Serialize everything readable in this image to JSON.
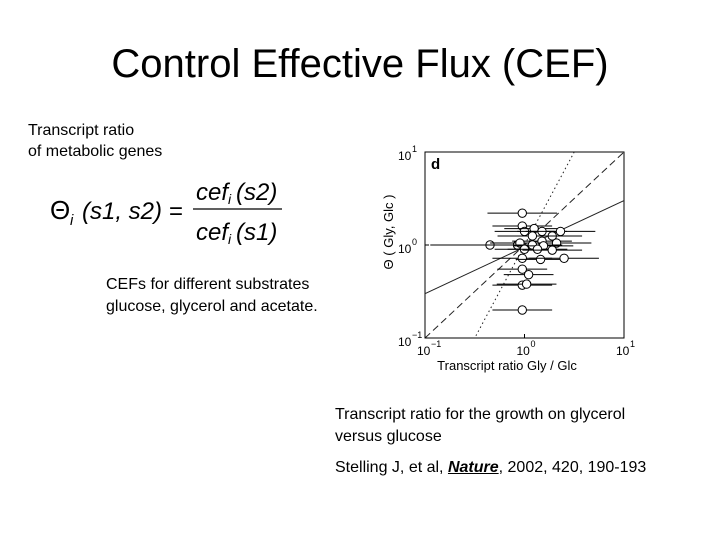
{
  "slide": {
    "title": "Control Effective Flux (CEF)",
    "transcript_label_line1": "Transcript ratio",
    "transcript_label_line2": "of metabolic genes",
    "cefs_line1": "CEFs for different substrates",
    "cefs_line2": "glucose, glycerol and acetate.",
    "caption_line1": "Transcript ratio for the growth on glycerol",
    "caption_line2": "versus glucose",
    "citation_authors": "Stelling J, et al, ",
    "citation_journal": "Nature",
    "citation_rest": ", 2002, 420, 190-193"
  },
  "formula": {
    "theta": "Θ",
    "sub_i": "i",
    "args": "(s1, s2) =",
    "num": "cef",
    "num_sub": "i",
    "num_arg": "(s2)",
    "den": "cef",
    "den_sub": "i",
    "den_arg": "(s1)"
  },
  "chart_data": {
    "type": "scatter",
    "panel_label": "d",
    "xlabel": "Transcript ratio Gly / Glc",
    "ylabel": "Θ ( Gly, Glc )",
    "x_scale": "log",
    "y_scale": "log",
    "xlim": [
      0.1,
      10
    ],
    "ylim": [
      0.1,
      10
    ],
    "x_ticks": [
      {
        "base": "10",
        "exp": "−1",
        "value": 0.1
      },
      {
        "base": "10",
        "exp": "0",
        "value": 1
      },
      {
        "base": "10",
        "exp": "1",
        "value": 10
      }
    ],
    "y_ticks": [
      {
        "base": "10",
        "exp": "−1",
        "value": 0.1
      },
      {
        "base": "10",
        "exp": "0",
        "value": 1
      },
      {
        "base": "10",
        "exp": "1",
        "value": 10
      }
    ],
    "points": [
      {
        "x": 0.95,
        "y": 2.2,
        "xerr": 0.35
      },
      {
        "x": 0.95,
        "y": 1.6,
        "xerr": 0.3
      },
      {
        "x": 1.0,
        "y": 1.4,
        "xerr": 0.3
      },
      {
        "x": 1.25,
        "y": 1.5,
        "xerr": 0.3
      },
      {
        "x": 1.5,
        "y": 1.4,
        "xerr": 0.25
      },
      {
        "x": 1.9,
        "y": 1.25,
        "xerr": 0.3
      },
      {
        "x": 2.3,
        "y": 1.4,
        "xerr": 0.35
      },
      {
        "x": 1.2,
        "y": 1.25,
        "xerr": 0.35
      },
      {
        "x": 1.5,
        "y": 1.1,
        "xerr": 0.3
      },
      {
        "x": 2.1,
        "y": 1.05,
        "xerr": 0.35
      },
      {
        "x": 0.45,
        "y": 1.0,
        "xerr": 0.6
      },
      {
        "x": 0.85,
        "y": 1.0,
        "xerr": 0.35
      },
      {
        "x": 0.9,
        "y": 1.05,
        "xerr": 0.3
      },
      {
        "x": 1.2,
        "y": 1.0,
        "xerr": 0.3
      },
      {
        "x": 1.55,
        "y": 0.98,
        "xerr": 0.3
      },
      {
        "x": 1.0,
        "y": 0.9,
        "xerr": 0.3
      },
      {
        "x": 1.35,
        "y": 0.9,
        "xerr": 0.3
      },
      {
        "x": 1.9,
        "y": 0.88,
        "xerr": 0.3
      },
      {
        "x": 0.95,
        "y": 0.72,
        "xerr": 0.3
      },
      {
        "x": 1.45,
        "y": 0.7,
        "xerr": 0.25
      },
      {
        "x": 2.5,
        "y": 0.72,
        "xerr": 0.35
      },
      {
        "x": 0.95,
        "y": 0.55,
        "xerr": 0.25
      },
      {
        "x": 1.1,
        "y": 0.48,
        "xerr": 0.25
      },
      {
        "x": 0.95,
        "y": 0.37,
        "xerr": 0.3
      },
      {
        "x": 1.05,
        "y": 0.38,
        "xerr": 0.3
      },
      {
        "x": 0.95,
        "y": 0.2,
        "xerr": 0.3
      }
    ],
    "lines": [
      {
        "style": "dashed",
        "x1": 0.1,
        "y1": 0.1,
        "x2": 10,
        "y2": 10
      },
      {
        "style": "dotted",
        "x1": 0.1,
        "y1": 0.01,
        "x2": 10,
        "y2": 100
      },
      {
        "style": "solid",
        "x1": 0.1,
        "y1": 0.3,
        "x2": 10,
        "y2": 3
      }
    ]
  }
}
